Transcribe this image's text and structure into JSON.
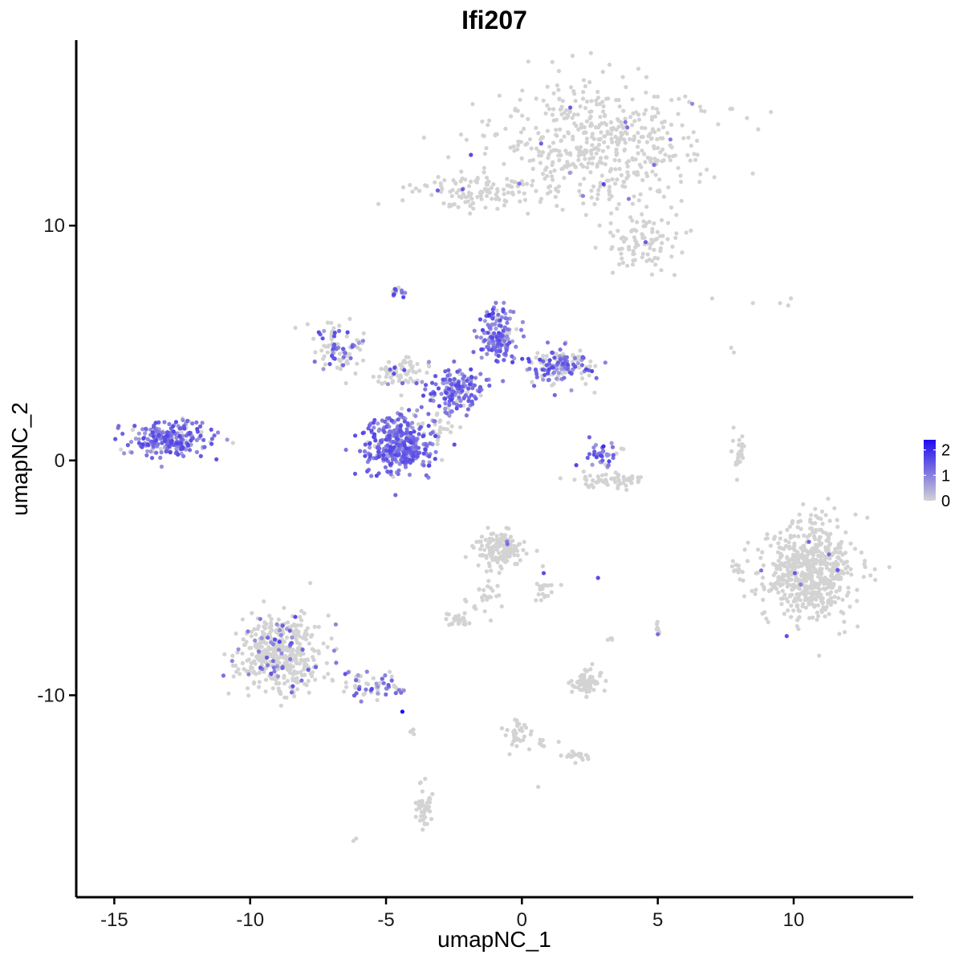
{
  "chart_data": {
    "type": "scatter",
    "title": "Ifi207",
    "xlabel": "umapNC_1",
    "ylabel": "umapNC_2",
    "xlim": [
      -16.4,
      14.4
    ],
    "ylim": [
      -18.6,
      17.9
    ],
    "x_ticks": [
      -15,
      -10,
      -5,
      0,
      5,
      10
    ],
    "y_ticks": [
      -10,
      0,
      10
    ],
    "x_tick_labels": [
      "-15",
      "-10",
      "-5",
      "0",
      "5",
      "10"
    ],
    "y_tick_labels": [
      "-10",
      "0",
      "10"
    ],
    "grid": false,
    "legend": {
      "placement": "right",
      "type": "colorbar",
      "min": 0,
      "max": 2.4,
      "ticks": [
        0,
        1,
        2
      ],
      "tick_labels": [
        "0",
        "1",
        "2"
      ],
      "low_color": "#d3d3d3",
      "high_color": "#1e0af0"
    },
    "point_color_low": "#d3d3d3",
    "point_color_high": "#1e0af0",
    "clusters": [
      {
        "cx": 2.8,
        "cy": 13.5,
        "sx": 2.6,
        "sy": 1.9,
        "n": 520,
        "expr": 0.02
      },
      {
        "cx": 4.5,
        "cy": 9.3,
        "sx": 1.0,
        "sy": 0.7,
        "n": 90,
        "expr": 0.01
      },
      {
        "cx": -1.8,
        "cy": 11.4,
        "sx": 1.5,
        "sy": 0.5,
        "n": 110,
        "expr": 0.02
      },
      {
        "cx": -4.6,
        "cy": 0.6,
        "sx": 0.9,
        "sy": 0.8,
        "n": 360,
        "expr": 0.85
      },
      {
        "cx": -2.5,
        "cy": 3.0,
        "sx": 0.7,
        "sy": 0.6,
        "n": 160,
        "expr": 0.8
      },
      {
        "cx": -0.9,
        "cy": 5.3,
        "sx": 0.5,
        "sy": 0.8,
        "n": 140,
        "expr": 0.8
      },
      {
        "cx": 1.5,
        "cy": 4.0,
        "sx": 0.8,
        "sy": 0.5,
        "n": 150,
        "expr": 0.55
      },
      {
        "cx": -6.8,
        "cy": 4.8,
        "sx": 0.7,
        "sy": 0.6,
        "n": 90,
        "expr": 0.4
      },
      {
        "cx": -4.4,
        "cy": 3.7,
        "sx": 0.7,
        "sy": 0.5,
        "n": 70,
        "expr": 0.2
      },
      {
        "cx": -4.6,
        "cy": 7.2,
        "sx": 0.15,
        "sy": 0.25,
        "n": 14,
        "expr": 0.6
      },
      {
        "cx": -13.0,
        "cy": 0.9,
        "sx": 1.0,
        "sy": 0.5,
        "n": 250,
        "expr": 0.7
      },
      {
        "cx": 3.0,
        "cy": 0.2,
        "sx": 0.4,
        "sy": 0.4,
        "n": 35,
        "expr": 0.7
      },
      {
        "cx": 3.4,
        "cy": -0.8,
        "sx": 0.9,
        "sy": 0.2,
        "n": 60,
        "expr": 0.0
      },
      {
        "cx": 10.6,
        "cy": -4.8,
        "sx": 1.1,
        "sy": 1.4,
        "n": 620,
        "expr": 0.01
      },
      {
        "cx": -8.9,
        "cy": -8.2,
        "sx": 1.0,
        "sy": 1.1,
        "n": 430,
        "expr": 0.1
      },
      {
        "cx": -5.5,
        "cy": -9.6,
        "sx": 0.8,
        "sy": 0.4,
        "n": 60,
        "expr": 0.5
      },
      {
        "cx": -0.8,
        "cy": -3.8,
        "sx": 0.6,
        "sy": 0.5,
        "n": 140,
        "expr": 0.02
      },
      {
        "cx": 0.8,
        "cy": -5.5,
        "sx": 0.3,
        "sy": 0.4,
        "n": 20,
        "expr": 0.05
      },
      {
        "cx": -1.3,
        "cy": -5.8,
        "sx": 0.4,
        "sy": 0.5,
        "n": 25,
        "expr": 0.0
      },
      {
        "cx": -2.4,
        "cy": -6.8,
        "sx": 0.3,
        "sy": 0.15,
        "n": 30,
        "expr": 0.0
      },
      {
        "cx": 2.4,
        "cy": -9.4,
        "sx": 0.4,
        "sy": 0.3,
        "n": 65,
        "expr": 0.03
      },
      {
        "cx": -0.2,
        "cy": -11.5,
        "sx": 0.3,
        "sy": 0.5,
        "n": 30,
        "expr": 0.0
      },
      {
        "cx": 2.1,
        "cy": -12.6,
        "sx": 0.3,
        "sy": 0.15,
        "n": 20,
        "expr": 0.0
      },
      {
        "cx": -3.6,
        "cy": -14.8,
        "sx": 0.2,
        "sy": 0.5,
        "n": 40,
        "expr": 0.0
      },
      {
        "cx": 8.0,
        "cy": 0.3,
        "sx": 0.2,
        "sy": 0.6,
        "n": 25,
        "expr": 0.0
      },
      {
        "cx": 7.9,
        "cy": -4.6,
        "sx": 0.2,
        "sy": 0.2,
        "n": 10,
        "expr": 0.0
      },
      {
        "cx": 5.0,
        "cy": -7.2,
        "sx": 0.1,
        "sy": 0.15,
        "n": 8,
        "expr": 0.1
      },
      {
        "cx": 3.3,
        "cy": -7.6,
        "sx": 0.1,
        "sy": 0.1,
        "n": 4,
        "expr": 0.0
      },
      {
        "cx": -4.0,
        "cy": -11.6,
        "sx": 0.1,
        "sy": 0.2,
        "n": 4,
        "expr": 0.0
      },
      {
        "cx": 0.5,
        "cy": -12.0,
        "sx": 0.4,
        "sy": 0.2,
        "n": 10,
        "expr": 0.0
      },
      {
        "cx": -3.2,
        "cy": 1.5,
        "sx": 0.6,
        "sy": 0.6,
        "n": 25,
        "expr": 0.1
      }
    ],
    "scattered_points": [
      {
        "x": 7.0,
        "y": 6.9,
        "v": 0.0
      },
      {
        "x": 8.5,
        "y": 6.7,
        "v": 0.0
      },
      {
        "x": 9.5,
        "y": 6.7,
        "v": 0.0
      },
      {
        "x": 9.9,
        "y": 6.9,
        "v": 0.0
      },
      {
        "x": 9.8,
        "y": 6.6,
        "v": 0.0
      },
      {
        "x": 7.7,
        "y": 4.8,
        "v": 0.0
      },
      {
        "x": 7.8,
        "y": 4.6,
        "v": 0.0
      },
      {
        "x": -6.1,
        "y": -16.1,
        "v": 0.0
      },
      {
        "x": -6.2,
        "y": -16.2,
        "v": 0.0
      },
      {
        "x": 0.6,
        "y": -13.9,
        "v": 0.0
      },
      {
        "x": 2.8,
        "y": -5.0,
        "v": 1.6
      },
      {
        "x": -4.4,
        "y": -10.7,
        "v": 2.4
      },
      {
        "x": -3.1,
        "y": 11.5,
        "v": 1.4
      },
      {
        "x": 0.8,
        "y": -4.8,
        "v": 1.6
      },
      {
        "x": 2.0,
        "y": -0.2,
        "v": 1.7
      },
      {
        "x": 3.0,
        "y": 0.6,
        "v": 2.0
      },
      {
        "x": -1.2,
        "y": 6.2,
        "v": 2.0
      },
      {
        "x": 11.3,
        "y": -4.0,
        "v": 1.2
      },
      {
        "x": 5.0,
        "y": -7.4,
        "v": 1.2
      }
    ]
  }
}
